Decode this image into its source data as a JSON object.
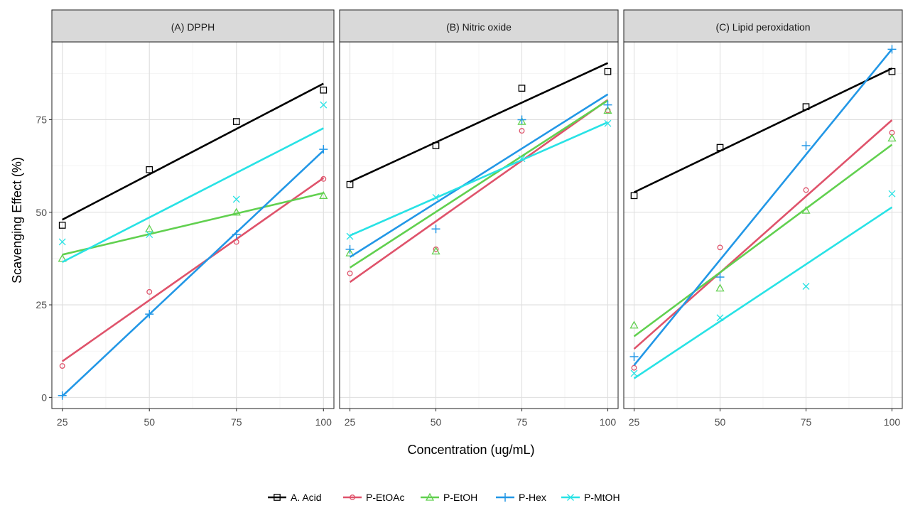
{
  "chart_data": {
    "type": "scatter",
    "xlabel": "Concentration (ug/mL)",
    "ylabel": "Scavenging Effect (%)",
    "x_ticks": [
      "25",
      "50",
      "75",
      "100"
    ],
    "y_ticks": [
      "0",
      "25",
      "50",
      "75"
    ],
    "xlim": [
      22,
      103
    ],
    "ylim": [
      -3,
      96
    ],
    "grid": true,
    "legend_position": "bottom",
    "fit_lines": "linear",
    "x": [
      25,
      50,
      75,
      100
    ],
    "series_styles": [
      {
        "name": "A. Acid",
        "color": "#000000",
        "marker": "square"
      },
      {
        "name": "P-EtOAc",
        "color": "#DF536B",
        "marker": "circle"
      },
      {
        "name": "P-EtOH",
        "color": "#61D04F",
        "marker": "triangle"
      },
      {
        "name": "P-Hex",
        "color": "#2297E6",
        "marker": "plus"
      },
      {
        "name": "P-MtOH",
        "color": "#28E2E5",
        "marker": "cross"
      }
    ],
    "panels": [
      {
        "title": "(A) DPPH",
        "series": [
          {
            "name": "A. Acid",
            "values": [
              46.5,
              61.5,
              74.5,
              83
            ]
          },
          {
            "name": "P-EtOAc",
            "values": [
              8.5,
              28.5,
              42,
              59
            ]
          },
          {
            "name": "P-EtOH",
            "values": [
              37.5,
              45.5,
              50,
              54.5
            ]
          },
          {
            "name": "P-Hex",
            "values": [
              0.5,
              22.5,
              44,
              67
            ]
          },
          {
            "name": "P-MtOH",
            "values": [
              42,
              44,
              53.5,
              79
            ]
          }
        ]
      },
      {
        "title": "(B) Nitric oxide",
        "series": [
          {
            "name": "A. Acid",
            "values": [
              57.5,
              68,
              83.5,
              88
            ]
          },
          {
            "name": "P-EtOAc",
            "values": [
              33.5,
              40,
              72,
              77.5
            ]
          },
          {
            "name": "P-EtOH",
            "values": [
              39,
              39.5,
              74.5,
              77.5
            ]
          },
          {
            "name": "P-Hex",
            "values": [
              40,
              45.5,
              75,
              79
            ]
          },
          {
            "name": "P-MtOH",
            "values": [
              43.5,
              54,
              64.5,
              74
            ]
          }
        ]
      },
      {
        "title": "(C) Lipid peroxidation",
        "series": [
          {
            "name": "A. Acid",
            "values": [
              54.5,
              67.5,
              78.5,
              88
            ]
          },
          {
            "name": "P-EtOAc",
            "values": [
              8,
              40.5,
              56,
              71.5
            ]
          },
          {
            "name": "P-EtOH",
            "values": [
              19.5,
              29.5,
              50.5,
              70
            ]
          },
          {
            "name": "P-Hex",
            "values": [
              11,
              32.5,
              68,
              94
            ]
          },
          {
            "name": "P-MtOH",
            "values": [
              6.5,
              21.5,
              30,
              55
            ]
          }
        ]
      }
    ]
  }
}
